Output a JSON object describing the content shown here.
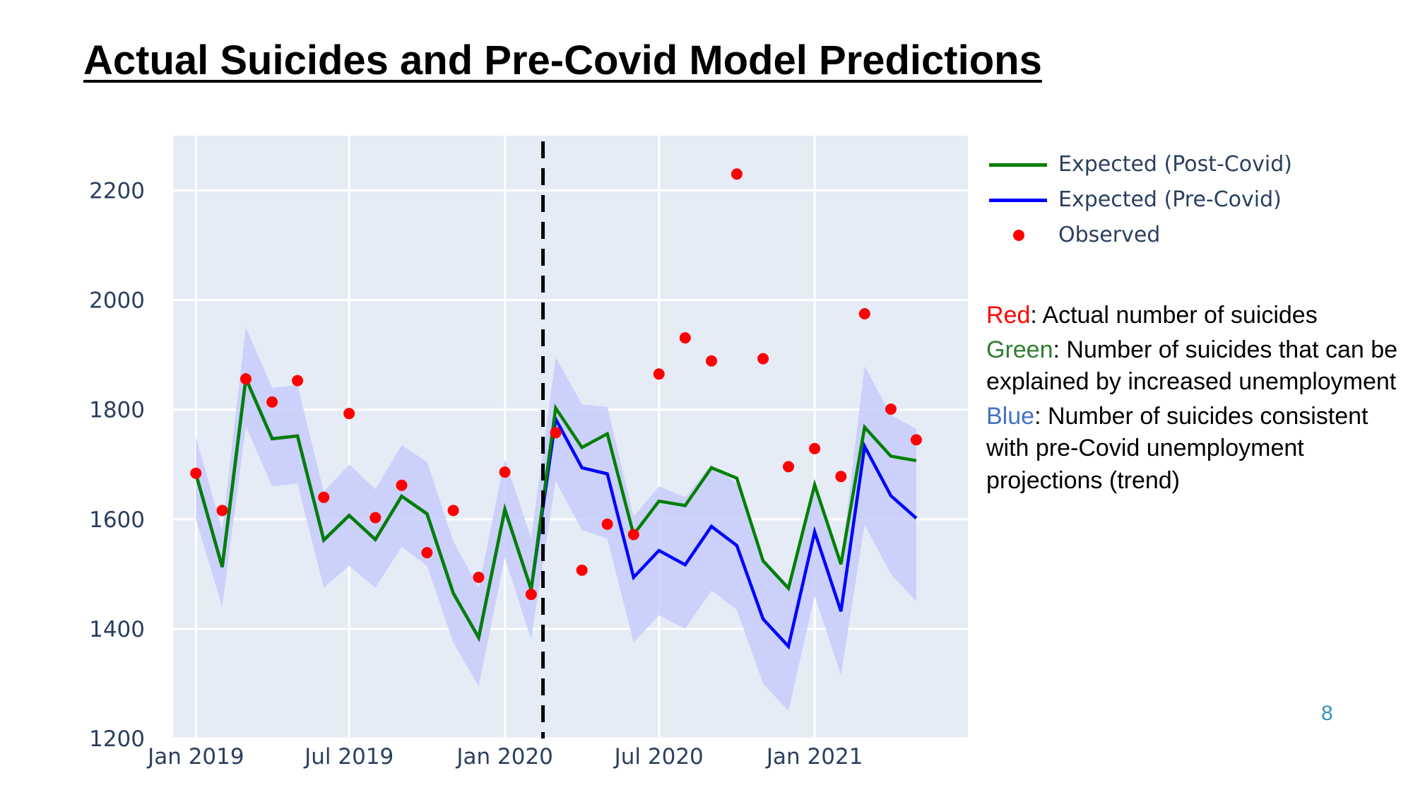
{
  "slide": {
    "title": "Actual Suicides and Pre-Covid Model Predictions",
    "page_number": "8"
  },
  "legend": {
    "items": [
      {
        "label": "Expected (Post-Covid)",
        "color": "#008000",
        "kind": "line"
      },
      {
        "label": "Expected (Pre-Covid)",
        "color": "#0000ff",
        "kind": "line"
      },
      {
        "label": "Observed",
        "color": "#ff0000",
        "kind": "marker"
      }
    ]
  },
  "explanation": {
    "red": {
      "key": "Red",
      "text": ": Actual number of suicides",
      "color": "#ff0000"
    },
    "green": {
      "key": "Green",
      "text": ": Number of suicides that can be explained by increased unemployment",
      "color": "#2e7d32"
    },
    "blue": {
      "key": "Blue",
      "text": ": Number of suicides consistent with pre-Covid unemployment projections (trend)",
      "color": "#4472c4"
    }
  },
  "chart_data": {
    "type": "line",
    "title": "",
    "xlabel": "",
    "ylabel": "",
    "x": [
      "2019-01",
      "2019-02",
      "2019-03",
      "2019-04",
      "2019-05",
      "2019-06",
      "2019-07",
      "2019-08",
      "2019-09",
      "2019-10",
      "2019-11",
      "2019-12",
      "2020-01",
      "2020-02",
      "2020-03",
      "2020-04",
      "2020-05",
      "2020-06",
      "2020-07",
      "2020-08",
      "2020-09",
      "2020-10",
      "2020-11",
      "2020-12",
      "2021-01",
      "2021-02",
      "2021-03",
      "2021-04",
      "2021-05"
    ],
    "x_ticks": [
      {
        "date": "2019-01",
        "label": "Jan 2019"
      },
      {
        "date": "2019-07",
        "label": "Jul 2019"
      },
      {
        "date": "2020-01",
        "label": "Jan 2020"
      },
      {
        "date": "2020-07",
        "label": "Jul 2020"
      },
      {
        "date": "2021-01",
        "label": "Jan 2021"
      }
    ],
    "xlim": [
      "2018-12-05",
      "2021-07-01"
    ],
    "ylim": [
      1200,
      2300
    ],
    "y_ticks": [
      1200,
      1400,
      1600,
      1800,
      2000,
      2200
    ],
    "grid": true,
    "plot_background": "#e5ecf6",
    "band_color": "#c7cdfb",
    "legend_position": "right",
    "covid_marker": {
      "date": "2020-02-15",
      "style": "dashed",
      "color": "#000000"
    },
    "series": [
      {
        "name": "Expected (Post-Covid)",
        "kind": "line",
        "color": "#008000",
        "values": [
          1683,
          1513,
          1857,
          1747,
          1752,
          1562,
          1607,
          1563,
          1642,
          1610,
          1465,
          1384,
          1618,
          1472,
          1803,
          1731,
          1756,
          1572,
          1633,
          1625,
          1694,
          1675,
          1524,
          1474,
          1663,
          1518,
          1768,
          1715,
          1707
        ]
      },
      {
        "name": "Expected (Pre-Covid)",
        "kind": "line",
        "color": "#0000ff",
        "values": [
          1683,
          1513,
          1857,
          1747,
          1752,
          1562,
          1607,
          1563,
          1642,
          1610,
          1465,
          1384,
          1618,
          1472,
          1783,
          1694,
          1683,
          1494,
          1543,
          1517,
          1587,
          1552,
          1418,
          1368,
          1577,
          1432,
          1733,
          1643,
          1602
        ]
      },
      {
        "name": "Observed",
        "kind": "scatter",
        "color": "#ff0000",
        "values": [
          1684,
          1616,
          1856,
          1814,
          1853,
          1640,
          1793,
          1603,
          1662,
          1539,
          1616,
          1494,
          1686,
          1463,
          1758,
          1507,
          1591,
          1572,
          1865,
          1931,
          1889,
          2230,
          1893,
          1696,
          1729,
          1678,
          1975,
          1801,
          1745
        ]
      }
    ],
    "band": {
      "upper": [
        1750,
        1580,
        1950,
        1840,
        1845,
        1650,
        1700,
        1655,
        1735,
        1705,
        1560,
        1475,
        1710,
        1565,
        1895,
        1810,
        1805,
        1605,
        1660,
        1640,
        1700,
        1665,
        1530,
        1480,
        1670,
        1520,
        1880,
        1790,
        1765
      ],
      "lower": [
        1600,
        1440,
        1770,
        1660,
        1665,
        1475,
        1515,
        1475,
        1550,
        1515,
        1375,
        1295,
        1530,
        1380,
        1670,
        1580,
        1565,
        1375,
        1425,
        1400,
        1470,
        1435,
        1300,
        1250,
        1460,
        1315,
        1590,
        1500,
        1450
      ]
    }
  }
}
